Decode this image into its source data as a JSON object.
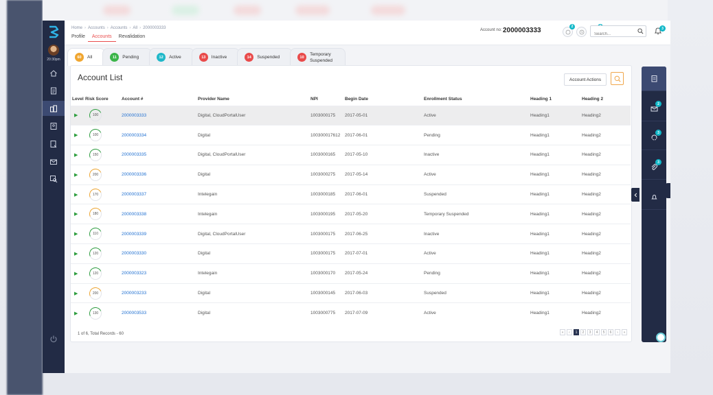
{
  "app": {
    "time": "20:30pm",
    "breadcrumb": [
      "Home",
      "Accounts",
      "Accounts",
      "All",
      "2000003333"
    ],
    "subtabs": [
      "Profile",
      "Accounts",
      "Revalidation"
    ],
    "account_label": "Account no:",
    "account_number": "2000003333",
    "header_badges": [
      "2",
      "2"
    ],
    "search_placeholder": "Search...",
    "bell_badge": "3"
  },
  "status_tabs": [
    {
      "count": "60",
      "label": "All",
      "color": "#f0a630"
    },
    {
      "count": "11",
      "label": "Pending",
      "color": "#3cb54a"
    },
    {
      "count": "12",
      "label": "Active",
      "color": "#1fb8c9"
    },
    {
      "count": "13",
      "label": "Inactive",
      "color": "#e94b4b"
    },
    {
      "count": "14",
      "label": "Suspended",
      "color": "#e94b4b"
    },
    {
      "count": "10",
      "label_line1": "Temporary",
      "label_line2": "Suspended",
      "color": "#e94b4b"
    }
  ],
  "card": {
    "title": "Account List",
    "actions_label": "Account Actions"
  },
  "table": {
    "headers": [
      "Level",
      "Risk Score",
      "Account #",
      "Provider Name",
      "NPI",
      "Begin Date",
      "Enrollment Status",
      "Heading 1",
      "Heading 2"
    ],
    "rows": [
      {
        "score": "100",
        "score_color": "#2e9e3f",
        "account": "2000003333",
        "provider": "Digital, CloudPortalUser",
        "npi": "1003000175",
        "begin": "2017-05-01",
        "status": "Active",
        "h1": "Heading1",
        "h2": "Heading2"
      },
      {
        "score": "100",
        "score_color": "#2e9e3f",
        "account": "2000003334",
        "provider": "Digital",
        "npi": "100300017612",
        "begin": "2017-06-01",
        "status": "Pending",
        "h1": "Heading1",
        "h2": "Heading2"
      },
      {
        "score": "150",
        "score_color": "#2e9e3f",
        "account": "2000003335",
        "provider": "Digital, CloudPortalUser",
        "npi": "1003000165",
        "begin": "2017-05-10",
        "status": "Inactive",
        "h1": "Heading1",
        "h2": "Heading2"
      },
      {
        "score": "200",
        "score_color": "#f0a630",
        "account": "2000003336",
        "provider": "Digital",
        "npi": "1003000275",
        "begin": "2017-05-14",
        "status": "Active",
        "h1": "Heading1",
        "h2": "Heading2"
      },
      {
        "score": "170",
        "score_color": "#f0a630",
        "account": "2000003337",
        "provider": "Intelegain",
        "npi": "1003000185",
        "begin": "2017-06-01",
        "status": "Suspended",
        "h1": "Heading1",
        "h2": "Heading2"
      },
      {
        "score": "180",
        "score_color": "#f0a630",
        "account": "2000003338",
        "provider": "Intelegain",
        "npi": "1003000195",
        "begin": "2017-05-20",
        "status": "Temporary Suspended",
        "h1": "Heading1",
        "h2": "Heading2"
      },
      {
        "score": "110",
        "score_color": "#2e9e3f",
        "account": "2000003339",
        "provider": "Digital, CloudPortalUser",
        "npi": "1003000175",
        "begin": "2017-06-25",
        "status": "Inactive",
        "h1": "Heading1",
        "h2": "Heading2"
      },
      {
        "score": "120",
        "score_color": "#2e9e3f",
        "account": "2000003330",
        "provider": "Digital",
        "npi": "1003000175",
        "begin": "2017-07-01",
        "status": "Active",
        "h1": "Heading1",
        "h2": "Heading2"
      },
      {
        "score": "120",
        "score_color": "#2e9e3f",
        "account": "2000003323",
        "provider": "Intelegain",
        "npi": "1003000170",
        "begin": "2017-05-24",
        "status": "Pending",
        "h1": "Heading1",
        "h2": "Heading2"
      },
      {
        "score": "200",
        "score_color": "#f0a630",
        "account": "2000003233",
        "provider": "Digital",
        "npi": "1003000145",
        "begin": "2017-06-03",
        "status": "Suspended",
        "h1": "Heading1",
        "h2": "Heading2"
      },
      {
        "score": "130",
        "score_color": "#2e9e3f",
        "account": "2000003533",
        "provider": "Digital",
        "npi": "1003000775",
        "begin": "2017-07-09",
        "status": "Active",
        "h1": "Heading1",
        "h2": "Heading2"
      }
    ]
  },
  "pagination": {
    "summary": "1 of 6, Total Records - 60",
    "pages": [
      "1",
      "2",
      "3",
      "4",
      "5",
      "6"
    ],
    "prev_first": "«",
    "prev": "‹",
    "next": "›",
    "next_last": "»"
  },
  "right_panel": {
    "badges": [
      "2",
      "3",
      "3"
    ]
  },
  "colors": {
    "nav_bg": "#222b45",
    "accent_red": "#e94b4b",
    "link_blue": "#1f6fd1",
    "badge_teal": "#12b8c8"
  }
}
